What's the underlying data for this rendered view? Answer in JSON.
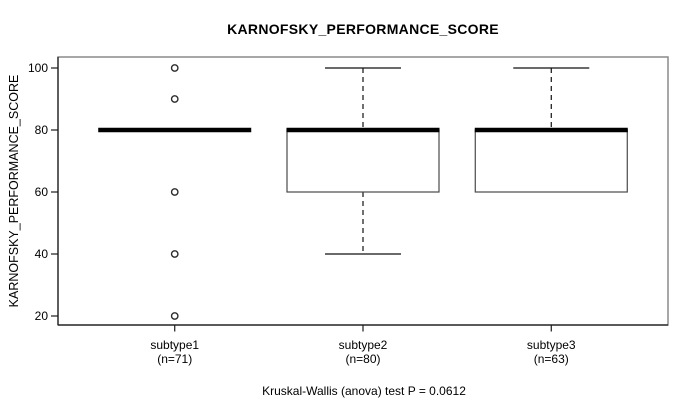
{
  "chart_data": {
    "type": "boxplot",
    "title": "KARNOFSKY_PERFORMANCE_SCORE",
    "ylabel": "KARNOFSKY_PERFORMANCE_SCORE",
    "subtitle": "Kruskal-Wallis (anova) test P = 0.0612",
    "ylim": [
      20,
      100
    ],
    "yticks": [
      20,
      40,
      60,
      80,
      100
    ],
    "grid": false,
    "legend": "none",
    "groups": [
      {
        "label": "subtype1",
        "count_label": "(n=71)",
        "n": 71,
        "median": 80,
        "q1": 80,
        "q3": 80,
        "whisker_low": 80,
        "whisker_high": 80,
        "outliers": [
          100,
          90,
          60,
          40,
          20
        ]
      },
      {
        "label": "subtype2",
        "count_label": "(n=80)",
        "n": 80,
        "median": 80,
        "q1": 60,
        "q3": 80,
        "whisker_low": 40,
        "whisker_high": 100,
        "outliers": []
      },
      {
        "label": "subtype3",
        "count_label": "(n=63)",
        "n": 63,
        "median": 80,
        "q1": 60,
        "q3": 80,
        "whisker_low": 60,
        "whisker_high": 100,
        "outliers": []
      }
    ],
    "colors": {
      "text": "#000000",
      "median": "#000000",
      "frame": "#8a8a8a",
      "axis": "#1a1a1a",
      "box_border": "#4a4a4a",
      "whisker": "#111111",
      "outlier": "#2a2a2a",
      "background": "#ffffff"
    }
  }
}
